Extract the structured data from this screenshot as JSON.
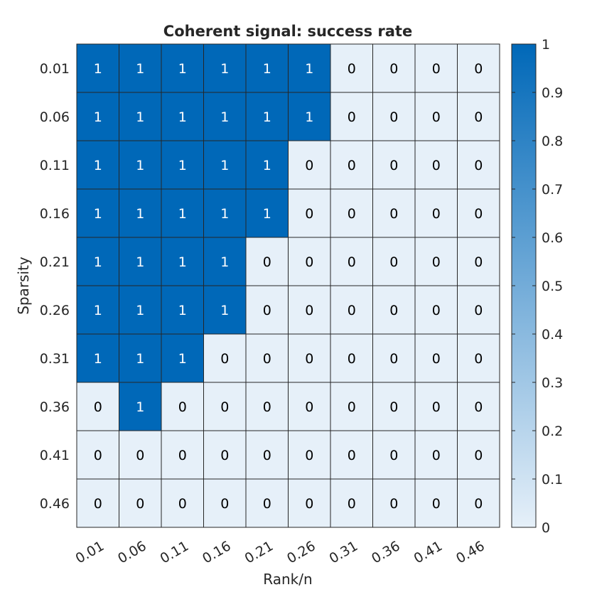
{
  "chart_data": {
    "type": "heatmap",
    "title": "Coherent signal: success rate",
    "xlabel": "Rank/n",
    "ylabel": "Sparsity",
    "x_categories": [
      "0.01",
      "0.06",
      "0.11",
      "0.16",
      "0.21",
      "0.26",
      "0.31",
      "0.36",
      "0.41",
      "0.46"
    ],
    "y_categories": [
      "0.01",
      "0.06",
      "0.11",
      "0.16",
      "0.21",
      "0.26",
      "0.31",
      "0.36",
      "0.41",
      "0.46"
    ],
    "values": [
      [
        1,
        1,
        1,
        1,
        1,
        1,
        0,
        0,
        0,
        0
      ],
      [
        1,
        1,
        1,
        1,
        1,
        1,
        0,
        0,
        0,
        0
      ],
      [
        1,
        1,
        1,
        1,
        1,
        0,
        0,
        0,
        0,
        0
      ],
      [
        1,
        1,
        1,
        1,
        1,
        0,
        0,
        0,
        0,
        0
      ],
      [
        1,
        1,
        1,
        1,
        0,
        0,
        0,
        0,
        0,
        0
      ],
      [
        1,
        1,
        1,
        1,
        0,
        0,
        0,
        0,
        0,
        0
      ],
      [
        1,
        1,
        1,
        0,
        0,
        0,
        0,
        0,
        0,
        0
      ],
      [
        0,
        1,
        0,
        0,
        0,
        0,
        0,
        0,
        0,
        0
      ],
      [
        0,
        0,
        0,
        0,
        0,
        0,
        0,
        0,
        0,
        0
      ],
      [
        0,
        0,
        0,
        0,
        0,
        0,
        0,
        0,
        0,
        0
      ]
    ],
    "colorbar": {
      "range": [
        0,
        1
      ],
      "ticks": [
        "0",
        "0.1",
        "0.2",
        "0.3",
        "0.4",
        "0.5",
        "0.6",
        "0.7",
        "0.8",
        "0.9",
        "1"
      ],
      "low_color": "#E6F0F9",
      "high_color": "#0068B8"
    },
    "cell_text_color_on_high": "#ffffff",
    "cell_text_color_on_low": "#000000",
    "grid": true
  }
}
